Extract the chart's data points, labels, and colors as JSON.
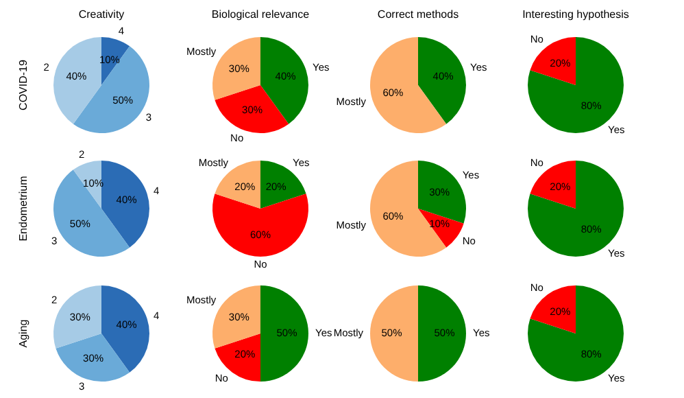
{
  "chart_data": [
    {
      "type": "pie",
      "title": "Creativity",
      "ylabel": "COVID-19",
      "categories": [
        "4",
        "3",
        "2"
      ],
      "values": [
        10,
        50,
        40
      ],
      "value_labels": [
        "10%",
        "50%",
        "40%"
      ],
      "colors": [
        "#2b6cb5",
        "#6aaad8",
        "#a6cbe6"
      ]
    },
    {
      "type": "pie",
      "title": "Biological relevance",
      "categories": [
        "Yes",
        "No",
        "Mostly"
      ],
      "values": [
        40,
        30,
        30
      ],
      "value_labels": [
        "40%",
        "30%",
        "30%"
      ],
      "colors": [
        "#008000",
        "#ff0000",
        "#fdae6b"
      ]
    },
    {
      "type": "pie",
      "title": "Correct methods",
      "categories": [
        "Yes",
        "Mostly"
      ],
      "values": [
        40,
        60
      ],
      "value_labels": [
        "40%",
        "60%"
      ],
      "colors": [
        "#008000",
        "#fdae6b"
      ]
    },
    {
      "type": "pie",
      "title": "Interesting hypothesis",
      "categories": [
        "Yes",
        "No"
      ],
      "values": [
        80,
        20
      ],
      "value_labels": [
        "80%",
        "20%"
      ],
      "colors": [
        "#008000",
        "#ff0000"
      ]
    },
    {
      "type": "pie",
      "ylabel": "Endometrium",
      "categories": [
        "4",
        "3",
        "2"
      ],
      "values": [
        40,
        50,
        10
      ],
      "value_labels": [
        "40%",
        "50%",
        "10%"
      ],
      "colors": [
        "#2b6cb5",
        "#6aaad8",
        "#a6cbe6"
      ]
    },
    {
      "type": "pie",
      "categories": [
        "Yes",
        "No",
        "Mostly"
      ],
      "values": [
        20,
        60,
        20
      ],
      "value_labels": [
        "20%",
        "60%",
        "20%"
      ],
      "colors": [
        "#008000",
        "#ff0000",
        "#fdae6b"
      ]
    },
    {
      "type": "pie",
      "categories": [
        "Yes",
        "No",
        "Mostly"
      ],
      "values": [
        30,
        10,
        60
      ],
      "value_labels": [
        "30%",
        "10%",
        "60%"
      ],
      "colors": [
        "#008000",
        "#ff0000",
        "#fdae6b"
      ]
    },
    {
      "type": "pie",
      "categories": [
        "Yes",
        "No"
      ],
      "values": [
        80,
        20
      ],
      "value_labels": [
        "80%",
        "20%"
      ],
      "colors": [
        "#008000",
        "#ff0000"
      ]
    },
    {
      "type": "pie",
      "ylabel": "Aging",
      "categories": [
        "4",
        "3",
        "2"
      ],
      "values": [
        40,
        30,
        30
      ],
      "value_labels": [
        "40%",
        "30%",
        "30%"
      ],
      "colors": [
        "#2b6cb5",
        "#6aaad8",
        "#a6cbe6"
      ]
    },
    {
      "type": "pie",
      "categories": [
        "Yes",
        "No",
        "Mostly"
      ],
      "values": [
        50,
        20,
        30
      ],
      "value_labels": [
        "50%",
        "20%",
        "30%"
      ],
      "colors": [
        "#008000",
        "#ff0000",
        "#fdae6b"
      ]
    },
    {
      "type": "pie",
      "categories": [
        "Yes",
        "Mostly"
      ],
      "values": [
        50,
        50
      ],
      "value_labels": [
        "50%",
        "50%"
      ],
      "colors": [
        "#008000",
        "#fdae6b"
      ]
    },
    {
      "type": "pie",
      "categories": [
        "Yes",
        "No"
      ],
      "values": [
        80,
        20
      ],
      "value_labels": [
        "80%",
        "20%"
      ],
      "colors": [
        "#008000",
        "#ff0000"
      ]
    }
  ]
}
